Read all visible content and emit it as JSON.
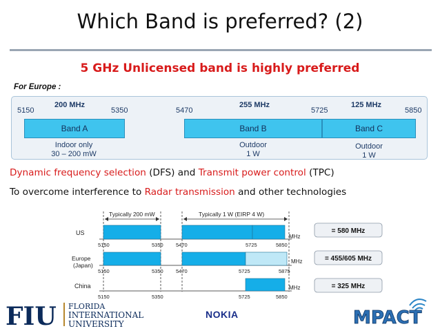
{
  "title": "Which Band is preferred? (2)",
  "subtitle": "5 GHz Unlicensed band is highly preferred",
  "europe_panel": {
    "label": "For Europe :",
    "freq_labels": [
      "5150",
      "5350",
      "5470",
      "5725",
      "5850"
    ],
    "widths": [
      "200 MHz",
      "255 MHz",
      "125 MHz"
    ],
    "bands": [
      {
        "name": "Band A",
        "use": "Indoor only",
        "power": "30 – 200 mW"
      },
      {
        "name": "Band B",
        "use": "Outdoor",
        "power": "1 W"
      },
      {
        "name": "Band C",
        "use": "Outdoor",
        "power": "1 W"
      }
    ]
  },
  "line1": {
    "p1": "Dynamic frequency selection",
    "p2": " (DFS) and ",
    "p3": "Transmit power control",
    "p4": " (TPC)"
  },
  "line2": {
    "p1": "To overcome interference to ",
    "p2": "Radar transmission",
    "p3": " and other technologies"
  },
  "region_chart": {
    "typical_low": "Typically 200 mW",
    "typical_high": "Typically 1 W (EIRP 4 W)",
    "mhz_unit": "MHz",
    "regions": [
      {
        "name": "US",
        "ticks": [
          "5150",
          "5350",
          "5470",
          "5725",
          "5850"
        ],
        "total": "= 580 MHz"
      },
      {
        "name": "Europe\n(Japan)",
        "ticks": [
          "5150",
          "5350",
          "5470",
          "5725",
          "5875"
        ],
        "total": "= 455/605 MHz"
      },
      {
        "name": "China",
        "ticks": [
          "5150",
          "5350",
          "5725",
          "5850"
        ],
        "total": "= 325 MHz"
      }
    ]
  },
  "logos": {
    "fiu_mark": "FIU",
    "fiu_line1": "FLORIDA",
    "fiu_line2": "INTERNATIONAL",
    "fiu_line3": "UNIVERSITY",
    "nokia": "NOKIA",
    "mpact": "MPACT"
  },
  "colors": {
    "accent_red": "#d81b1b",
    "band_blue": "#3fc4ee",
    "band_light": "#bfe8f7",
    "fiu_blue": "#0b2a5a",
    "fiu_gold": "#b6862c"
  }
}
